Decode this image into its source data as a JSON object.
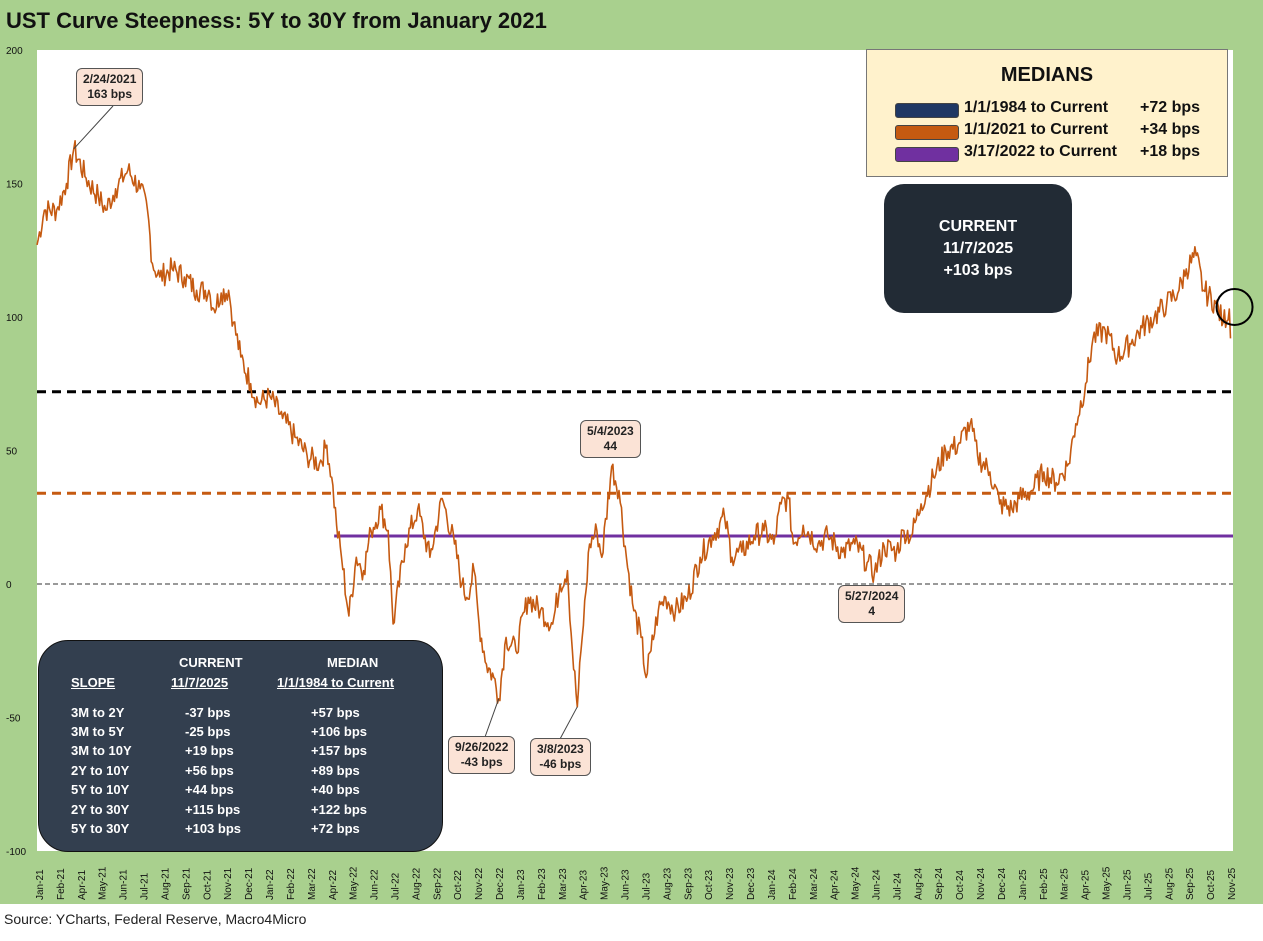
{
  "title": "UST Curve Steepness: 5Y to 30Y from January 2021",
  "source": "Source: YCharts, Federal Reserve, Macro4Micro",
  "colors": {
    "frame": "#a9d08e",
    "series": "#c55a11",
    "median_1984": "#000000",
    "median_2021": "#c55a11",
    "median_2022": "#7030a0",
    "callout_fill": "#fbe3d6",
    "current_box": "#222b35",
    "slope_box": "#333f4f",
    "medians_box": "#fff2cc"
  },
  "chart_data": {
    "type": "line",
    "title": "UST Curve Steepness: 5Y to 30Y from January 2021",
    "xlabel": "",
    "ylabel": "",
    "ylim": [
      -100,
      200
    ],
    "y_ticks": [
      -100,
      -50,
      0,
      50,
      100,
      150,
      200
    ],
    "x_tick_labels": [
      "Jan-21",
      "Feb-21",
      "Apr-21",
      "May-21",
      "Jun-21",
      "Jul-21",
      "Aug-21",
      "Sep-21",
      "Oct-21",
      "Nov-21",
      "Dec-21",
      "Jan-22",
      "Feb-22",
      "Mar-22",
      "Apr-22",
      "May-22",
      "Jun-22",
      "Jul-22",
      "Aug-22",
      "Sep-22",
      "Oct-22",
      "Nov-22",
      "Dec-22",
      "Jan-23",
      "Feb-23",
      "Mar-23",
      "Apr-23",
      "May-23",
      "Jun-23",
      "Jul-23",
      "Aug-23",
      "Sep-23",
      "Oct-23",
      "Nov-23",
      "Dec-23",
      "Jan-24",
      "Feb-24",
      "Mar-24",
      "Apr-24",
      "May-24",
      "Jun-24",
      "Jul-24",
      "Aug-24",
      "Sep-24",
      "Oct-24",
      "Nov-24",
      "Dec-24",
      "Jan-25",
      "Feb-25",
      "Mar-25",
      "Apr-25",
      "May-25",
      "Jun-25",
      "Jul-25",
      "Aug-25",
      "Sep-25",
      "Oct-25",
      "Nov-25"
    ],
    "series": [
      {
        "name": "5Y to 30Y spread (bps)",
        "points": [
          [
            2021.0,
            127
          ],
          [
            2021.03,
            140
          ],
          [
            2021.08,
            140
          ],
          [
            2021.12,
            150
          ],
          [
            2021.15,
            163
          ],
          [
            2021.2,
            152
          ],
          [
            2021.25,
            145
          ],
          [
            2021.28,
            140
          ],
          [
            2021.32,
            148
          ],
          [
            2021.37,
            155
          ],
          [
            2021.42,
            148
          ],
          [
            2021.45,
            140
          ],
          [
            2021.47,
            120
          ],
          [
            2021.5,
            115
          ],
          [
            2021.55,
            118
          ],
          [
            2021.6,
            115
          ],
          [
            2021.65,
            110
          ],
          [
            2021.7,
            110
          ],
          [
            2021.72,
            103
          ],
          [
            2021.75,
            109
          ],
          [
            2021.78,
            110
          ],
          [
            2021.8,
            98
          ],
          [
            2021.83,
            85
          ],
          [
            2021.87,
            75
          ],
          [
            2021.9,
            68
          ],
          [
            2021.95,
            70
          ],
          [
            2022.0,
            62
          ],
          [
            2022.05,
            55
          ],
          [
            2022.1,
            48
          ],
          [
            2022.15,
            45
          ],
          [
            2022.18,
            52
          ],
          [
            2022.2,
            40
          ],
          [
            2022.22,
            22
          ],
          [
            2022.24,
            10
          ],
          [
            2022.27,
            -12
          ],
          [
            2022.3,
            10
          ],
          [
            2022.33,
            5
          ],
          [
            2022.36,
            20
          ],
          [
            2022.4,
            28
          ],
          [
            2022.43,
            20
          ],
          [
            2022.45,
            -15
          ],
          [
            2022.5,
            15
          ],
          [
            2022.55,
            28
          ],
          [
            2022.6,
            10
          ],
          [
            2022.65,
            32
          ],
          [
            2022.7,
            15
          ],
          [
            2022.73,
            0
          ],
          [
            2022.75,
            -5
          ],
          [
            2022.78,
            5
          ],
          [
            2022.8,
            -15
          ],
          [
            2022.83,
            -30
          ],
          [
            2022.86,
            -35
          ],
          [
            2022.88,
            -43
          ],
          [
            2022.91,
            -20
          ],
          [
            2022.95,
            -25
          ],
          [
            2023.0,
            -5
          ],
          [
            2023.05,
            -10
          ],
          [
            2023.1,
            -15
          ],
          [
            2023.13,
            0
          ],
          [
            2023.16,
            5
          ],
          [
            2023.18,
            -25
          ],
          [
            2023.2,
            -46
          ],
          [
            2023.22,
            -20
          ],
          [
            2023.25,
            15
          ],
          [
            2023.28,
            20
          ],
          [
            2023.3,
            10
          ],
          [
            2023.34,
            44
          ],
          [
            2023.37,
            35
          ],
          [
            2023.4,
            10
          ],
          [
            2023.43,
            -10
          ],
          [
            2023.46,
            -20
          ],
          [
            2023.48,
            -35
          ],
          [
            2023.5,
            -25
          ],
          [
            2023.53,
            -10
          ],
          [
            2023.56,
            -5
          ],
          [
            2023.6,
            -10
          ],
          [
            2023.65,
            -5
          ],
          [
            2023.7,
            10
          ],
          [
            2023.75,
            18
          ],
          [
            2023.8,
            25
          ],
          [
            2023.83,
            10
          ],
          [
            2023.87,
            12
          ],
          [
            2023.92,
            18
          ],
          [
            2023.96,
            20
          ],
          [
            2024.0,
            15
          ],
          [
            2024.03,
            30
          ],
          [
            2024.06,
            32
          ],
          [
            2024.08,
            15
          ],
          [
            2024.12,
            22
          ],
          [
            2024.18,
            15
          ],
          [
            2024.22,
            18
          ],
          [
            2024.28,
            12
          ],
          [
            2024.33,
            15
          ],
          [
            2024.38,
            8
          ],
          [
            2024.41,
            4
          ],
          [
            2024.45,
            14
          ],
          [
            2024.5,
            12
          ],
          [
            2024.53,
            20
          ],
          [
            2024.56,
            18
          ],
          [
            2024.6,
            30
          ],
          [
            2024.65,
            40
          ],
          [
            2024.7,
            50
          ],
          [
            2024.75,
            52
          ],
          [
            2024.8,
            60
          ],
          [
            2024.83,
            48
          ],
          [
            2024.88,
            42
          ],
          [
            2024.92,
            30
          ],
          [
            2024.97,
            28
          ],
          [
            2025.0,
            32
          ],
          [
            2025.05,
            35
          ],
          [
            2025.1,
            42
          ],
          [
            2025.15,
            38
          ],
          [
            2025.2,
            45
          ],
          [
            2025.23,
            60
          ],
          [
            2025.27,
            75
          ],
          [
            2025.3,
            92
          ],
          [
            2025.35,
            95
          ],
          [
            2025.4,
            85
          ],
          [
            2025.45,
            90
          ],
          [
            2025.5,
            96
          ],
          [
            2025.55,
            100
          ],
          [
            2025.6,
            105
          ],
          [
            2025.65,
            110
          ],
          [
            2025.68,
            118
          ],
          [
            2025.72,
            123
          ],
          [
            2025.75,
            110
          ],
          [
            2025.8,
            105
          ],
          [
            2025.83,
            98
          ],
          [
            2025.86,
            92
          ],
          [
            2025.855,
            103
          ]
        ]
      }
    ],
    "medians": [
      {
        "label": "1/1/1984 to Current",
        "value": 72,
        "display": "+72 bps",
        "start": 2021.0,
        "style": "dashed"
      },
      {
        "label": "1/1/2021 to Current",
        "value": 34,
        "display": "+34 bps",
        "start": 2021.0,
        "style": "dashed"
      },
      {
        "label": "3/17/2022 to Current",
        "value": 18,
        "display": "+18 bps",
        "start": 2022.21,
        "style": "solid"
      }
    ],
    "zero_line": 0,
    "annotations": [
      {
        "date": "2/24/2021",
        "value_text": "163 bps",
        "x": 2021.15,
        "y": 163
      },
      {
        "date": "5/4/2023",
        "value_text": "44",
        "x": 2023.34,
        "y": 44
      },
      {
        "date": "9/26/2022",
        "value_text": "-43 bps",
        "x": 2022.88,
        "y": -43
      },
      {
        "date": "3/8/2023",
        "value_text": "-46 bps",
        "x": 2023.2,
        "y": -46
      },
      {
        "date": "5/27/2024",
        "value_text": "4",
        "x": 2024.41,
        "y": 4
      }
    ],
    "x_range": [
      2021.0,
      2025.87
    ]
  },
  "medians_box": {
    "title": "MEDIANS",
    "rows": [
      {
        "label": "1/1/1984 to Current",
        "value": "+72 bps"
      },
      {
        "label": "1/1/2021 to Current",
        "value": "+34 bps"
      },
      {
        "label": "3/17/2022 to Current",
        "value": "+18 bps"
      }
    ]
  },
  "current_box": {
    "line1": "CURRENT",
    "line2": "11/7/2025",
    "line3": "+103 bps"
  },
  "slope_table": {
    "header1": {
      "current": "CURRENT",
      "median": "MEDIAN"
    },
    "header2": {
      "slope": "SLOPE",
      "current": "11/7/2025",
      "median": "1/1/1984 to Current"
    },
    "rows": [
      {
        "slope": "3M to 2Y",
        "current": "-37 bps",
        "median": "+57 bps"
      },
      {
        "slope": "3M to 5Y",
        "current": "-25 bps",
        "median": "+106 bps"
      },
      {
        "slope": "3M to 10Y",
        "current": "+19 bps",
        "median": "+157 bps"
      },
      {
        "slope": "2Y to 10Y",
        "current": "+56 bps",
        "median": "+89 bps"
      },
      {
        "slope": "5Y to 10Y",
        "current": "+44 bps",
        "median": "+40 bps"
      },
      {
        "slope": "2Y to 30Y",
        "current": "+115 bps",
        "median": "+122 bps"
      },
      {
        "slope": "5Y to 30Y",
        "current": "+103 bps",
        "median": "+72 bps"
      }
    ]
  }
}
